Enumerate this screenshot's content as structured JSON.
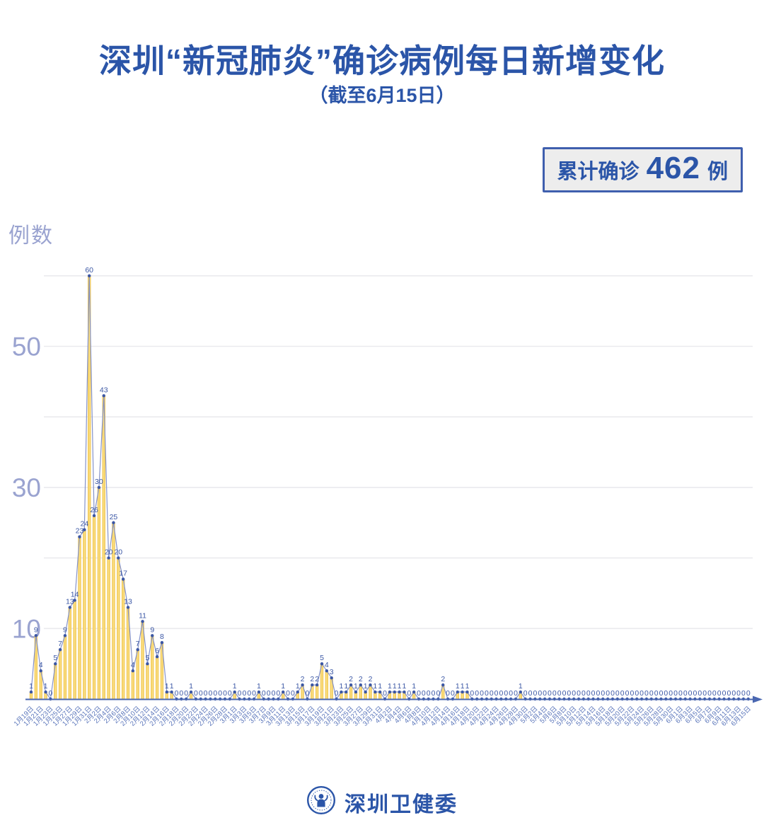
{
  "header": {
    "title": "深圳“新冠肺炎”确诊病例每日新增变化",
    "subtitle": "（截至6月15日）"
  },
  "summary_badge": {
    "label": "累计确诊",
    "value": "462",
    "unit": "例"
  },
  "footer": {
    "org": "深圳卫健委",
    "logo": "shenzhen-health-commission-logo"
  },
  "colors": {
    "heading_blue": "#2b55a8",
    "axis_label_purple": "#9aa3d0",
    "gridline": "#eaeaee",
    "bar_edge": "#eec045",
    "bar_center": "#fce38b",
    "trend_line": "#8593c9",
    "point_and_value": "#3b57a5",
    "date_label": "#5b76bb",
    "axis_line": "#4a67b1",
    "badge_bg": "#ededed",
    "badge_border": "#3f5fae"
  },
  "chart_data": {
    "type": "bar",
    "title": "深圳“新冠肺炎”确诊病例每日新增变化",
    "subtitle": "（截至6月15日）",
    "ylabel": "例数",
    "ylim": [
      0,
      62
    ],
    "gridlines": [
      10,
      20,
      30,
      40,
      50,
      60
    ],
    "ytick_labels": [
      10,
      30,
      50
    ],
    "xtick_every": 2,
    "legend_position": "none",
    "x": [
      "1月19日",
      "1月20日",
      "1月21日",
      "1月22日",
      "1月23日",
      "1月24日",
      "1月25日",
      "1月26日",
      "1月27日",
      "1月28日",
      "1月29日",
      "1月30日",
      "1月31日",
      "2月1日",
      "2月2日",
      "2月3日",
      "2月4日",
      "2月5日",
      "2月6日",
      "2月7日",
      "2月8日",
      "2月9日",
      "2月10日",
      "2月11日",
      "2月12日",
      "2月13日",
      "2月14日",
      "2月15日",
      "2月16日",
      "2月17日",
      "2月18日",
      "2月19日",
      "2月20日",
      "2月21日",
      "2月22日",
      "2月23日",
      "2月24日",
      "2月25日",
      "2月26日",
      "2月27日",
      "2月28日",
      "2月29日",
      "3月1日",
      "3月2日",
      "3月3日",
      "3月4日",
      "3月5日",
      "3月6日",
      "3月7日",
      "3月8日",
      "3月9日",
      "3月10日",
      "3月11日",
      "3月12日",
      "3月13日",
      "3月14日",
      "3月15日",
      "3月16日",
      "3月17日",
      "3月18日",
      "3月19日",
      "3月20日",
      "3月21日",
      "3月22日",
      "3月23日",
      "3月24日",
      "3月25日",
      "3月26日",
      "3月27日",
      "3月28日",
      "3月29日",
      "3月30日",
      "3月31日",
      "4月1日",
      "4月2日",
      "4月3日",
      "4月4日",
      "4月5日",
      "4月6日",
      "4月7日",
      "4月8日",
      "4月9日",
      "4月10日",
      "4月11日",
      "4月12日",
      "4月13日",
      "4月14日",
      "4月15日",
      "4月16日",
      "4月17日",
      "4月18日",
      "4月19日",
      "4月20日",
      "4月21日",
      "4月22日",
      "4月23日",
      "4月24日",
      "4月25日",
      "4月26日",
      "4月27日",
      "4月28日",
      "4月29日",
      "4月30日",
      "5月1日",
      "5月2日",
      "5月3日",
      "5月4日",
      "5月5日",
      "5月6日",
      "5月7日",
      "5月8日",
      "5月9日",
      "5月10日",
      "5月11日",
      "5月12日",
      "5月13日",
      "5月14日",
      "5月15日",
      "5月16日",
      "5月17日",
      "5月18日",
      "5月19日",
      "5月20日",
      "5月21日",
      "5月22日",
      "5月23日",
      "5月24日",
      "5月25日",
      "5月26日",
      "5月27日",
      "5月28日",
      "5月29日",
      "5月30日",
      "5月31日",
      "6月1日",
      "6月2日",
      "6月3日",
      "6月4日",
      "6月5日",
      "6月6日",
      "6月7日",
      "6月8日",
      "6月9日",
      "6月10日",
      "6月11日",
      "6月12日",
      "6月13日",
      "6月14日",
      "6月15日"
    ],
    "values": [
      1,
      9,
      4,
      1,
      0,
      5,
      7,
      9,
      13,
      14,
      23,
      24,
      60,
      26,
      30,
      43,
      20,
      25,
      20,
      17,
      13,
      4,
      7,
      11,
      5,
      9,
      6,
      8,
      1,
      1,
      0,
      0,
      0,
      1,
      0,
      0,
      0,
      0,
      0,
      0,
      0,
      0,
      1,
      0,
      0,
      0,
      0,
      1,
      0,
      0,
      0,
      0,
      1,
      0,
      0,
      1,
      2,
      0,
      2,
      2,
      5,
      4,
      3,
      0,
      1,
      1,
      2,
      1,
      2,
      1,
      2,
      1,
      1,
      0,
      1,
      1,
      1,
      1,
      0,
      1,
      0,
      0,
      0,
      0,
      0,
      2,
      0,
      0,
      1,
      1,
      1,
      0,
      0,
      0,
      0,
      0,
      0,
      0,
      0,
      0,
      0,
      1,
      0,
      0,
      0,
      0,
      0,
      0,
      0,
      0,
      0,
      0,
      0,
      0,
      0,
      0,
      0,
      0,
      0,
      0,
      0,
      0,
      0,
      0,
      0,
      0,
      0,
      0,
      0,
      0,
      0,
      0,
      0,
      0,
      0,
      0,
      0,
      0,
      0,
      0,
      0,
      0,
      0,
      0,
      0,
      0,
      0,
      0,
      0
    ]
  }
}
